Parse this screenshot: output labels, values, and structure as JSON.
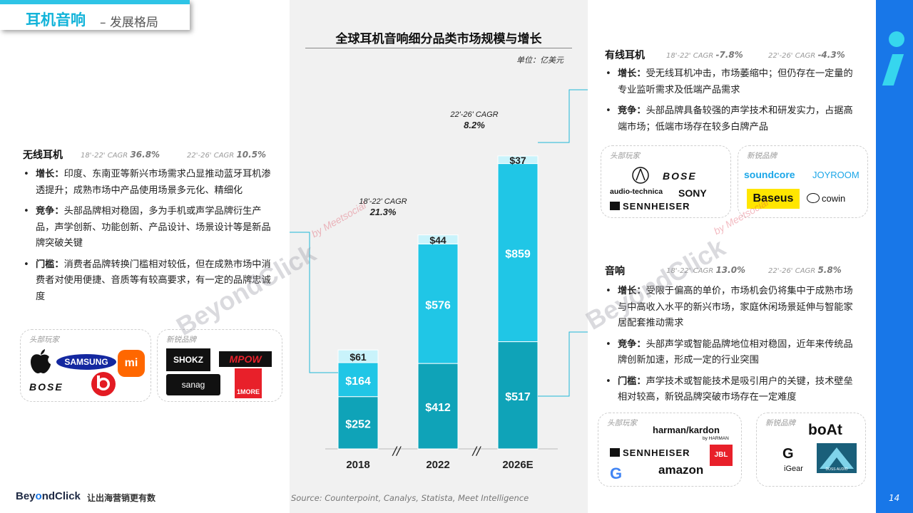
{
  "header": {
    "title": "耳机音响",
    "subtitle": "– 发展格局"
  },
  "page_number": "14",
  "chart_title": "全球耳机音响细分品类市场规模与增长",
  "unit": "单位：亿美元",
  "chart_data": {
    "type": "bar",
    "stacked": true,
    "categories": [
      "2018",
      "2022",
      "2026E"
    ],
    "series": [
      {
        "key": "speaker",
        "values": [
          252,
          412,
          517
        ],
        "labels": [
          "$252",
          "$412",
          "$517"
        ],
        "color": "#0fa3b8"
      },
      {
        "key": "wireless",
        "values": [
          164,
          576,
          859
        ],
        "labels": [
          "$164",
          "$576",
          "$859"
        ],
        "color": "#20c6e6"
      },
      {
        "key": "wired",
        "values": [
          61,
          44,
          37
        ],
        "labels": [
          "$61",
          "$44",
          "$37"
        ],
        "color": "#c9f3fb"
      }
    ],
    "annotations": [
      {
        "text": "18'-22' CAGR",
        "value": "21.3%"
      },
      {
        "text": "22'-26' CAGR",
        "value": "8.2%"
      }
    ],
    "axis_break": "//"
  },
  "wireless": {
    "title": "无线耳机",
    "cagr1_label": "18'-22' CAGR",
    "cagr1_value": "36.8%",
    "cagr2_label": "22'-26' CAGR",
    "cagr2_value": "10.5%",
    "bullets": [
      {
        "head": "增长：",
        "text": "印度、东南亚等新兴市场需求凸显推动蓝牙耳机渗透提升；成熟市场中产品使用场景多元化、精细化"
      },
      {
        "head": "竞争：",
        "text": "头部品牌相对稳固，多为手机或声学品牌衍生产品，声学创新、功能创新、产品设计、场景设计等是新品牌突破关键"
      },
      {
        "head": "门槛：",
        "text": "消费者品牌转换门槛相对较低，但在成熟市场中消费者对使用便捷、音质等有较高要求，有一定的品牌忠诚度"
      }
    ],
    "leaders_label": "头部玩家",
    "new_label": "新锐品牌",
    "leaders": [
      "SAMSUNG",
      "mi",
      "BOSE"
    ],
    "new_brands": [
      "SHOKZ",
      "MPOW",
      "sanag",
      "1MORE"
    ]
  },
  "wired": {
    "title": "有线耳机",
    "cagr1_label": "18'-22' CAGR",
    "cagr1_value": "-7.8%",
    "cagr2_label": "22'-26' CAGR",
    "cagr2_value": "-4.3%",
    "bullets": [
      {
        "head": "增长：",
        "text": "受无线耳机冲击，市场萎缩中；但仍存在一定量的专业监听需求及低端产品需求"
      },
      {
        "head": "竞争：",
        "text": "头部品牌具备较强的声学技术和研发实力，占据高端市场；低端市场存在较多白牌产品"
      }
    ],
    "leaders_label": "头部玩家",
    "new_label": "新锐品牌",
    "leaders": [
      "BOSE",
      "audio-technica",
      "SONY",
      "SENNHEISER"
    ],
    "new_brands": [
      "soundcore",
      "JOYROOM",
      "Baseus",
      "cowin"
    ]
  },
  "speaker": {
    "title": "音响",
    "cagr1_label": "18'-22' CAGR",
    "cagr1_value": "13.0%",
    "cagr2_label": "22'-26' CAGR",
    "cagr2_value": "5.8%",
    "bullets": [
      {
        "head": "增长：",
        "text": "受限于偏高的单价，市场机会仍将集中于成熟市场与中高收入水平的新兴市场，家庭休闲场景延伸与智能家居配套推动需求"
      },
      {
        "head": "竞争：",
        "text": "头部声学或智能品牌地位相对稳固，近年来传统品牌创新加速，形成一定的行业突围"
      },
      {
        "head": "门槛：",
        "text": "声学技术或智能技术是吸引用户的关键，技术壁垒相对较高，新锐品牌突破市场存在一定难度"
      }
    ],
    "leaders_label": "头部玩家",
    "new_label": "新锐品牌",
    "leaders": [
      "harman/kardon",
      "by HARMAN",
      "SENNHEISER",
      "JBL",
      "amazon"
    ],
    "new_brands": [
      "boAt",
      "iGear",
      "DOSS AUDIO"
    ]
  },
  "footer": {
    "logo_a": "Bey",
    "logo_o": "o",
    "logo_b": "ndClick",
    "slogan": "让出海营销更有数"
  },
  "source": "Source: Counterpoint, Canalys, Statista, Meet Intelligence",
  "watermark": {
    "main": "BeyondClick",
    "sub": "by Meetsocial"
  }
}
